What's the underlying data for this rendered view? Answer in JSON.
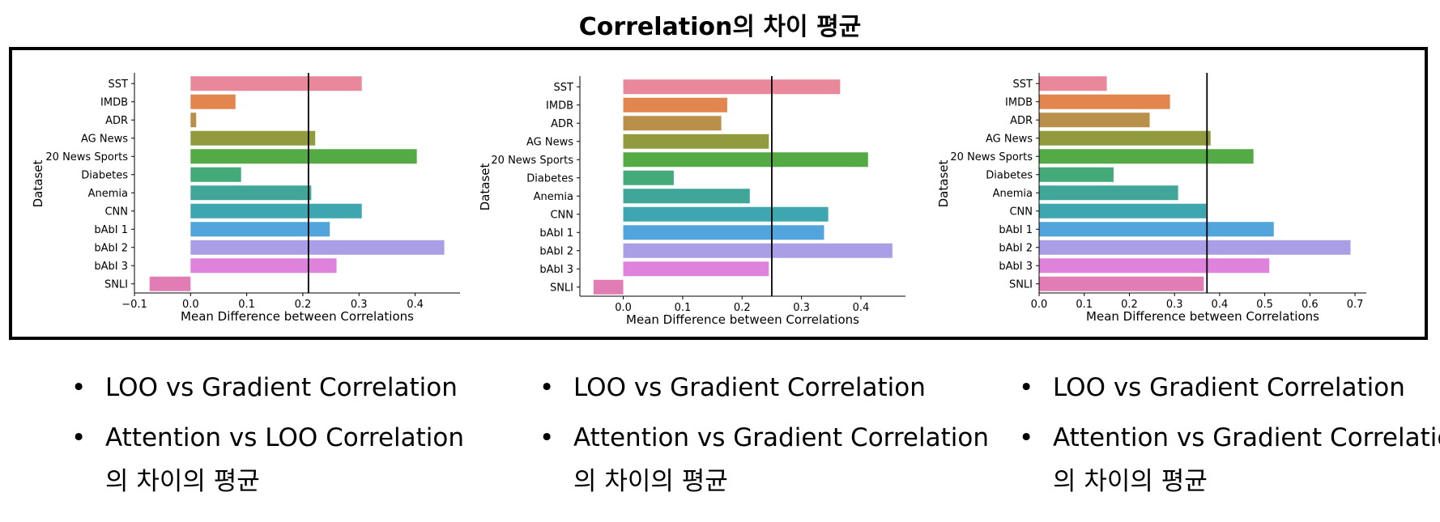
{
  "title": "Correlation의 차이 평균",
  "chart_data": [
    {
      "type": "bar",
      "orientation": "horizontal",
      "ylabel": "Dataset",
      "xlabel": "Mean Difference between Correlations",
      "categories": [
        "SST",
        "IMDB",
        "ADR",
        "AG News",
        "20 News Sports",
        "Diabetes",
        "Anemia",
        "CNN",
        "bAbI 1",
        "bAbI 2",
        "bAbI 3",
        "SNLI"
      ],
      "values": [
        0.305,
        0.08,
        0.01,
        0.222,
        0.403,
        0.09,
        0.215,
        0.305,
        0.248,
        0.452,
        0.26,
        -0.073
      ],
      "colors": [
        "#e8889a",
        "#e2854e",
        "#b9904a",
        "#929a3e",
        "#54aa44",
        "#44aa7a",
        "#40a69a",
        "#3ea6ae",
        "#52a4dc",
        "#aa9ee6",
        "#de82dc",
        "#e27cb4"
      ],
      "reference_line": 0.21,
      "xlim": [
        -0.1,
        0.48
      ],
      "xticks": [
        -0.1,
        0.0,
        0.1,
        0.2,
        0.3,
        0.4
      ],
      "xtick_labels": [
        "−0.1",
        "0.0",
        "0.1",
        "0.2",
        "0.3",
        "0.4"
      ]
    },
    {
      "type": "bar",
      "orientation": "horizontal",
      "ylabel": "Dataset",
      "xlabel": "Mean Difference between Correlations",
      "categories": [
        "SST",
        "IMDB",
        "ADR",
        "AG News",
        "20 News Sports",
        "Diabetes",
        "Anemia",
        "CNN",
        "bAbI 1",
        "bAbI 2",
        "bAbI 3",
        "SNLI"
      ],
      "values": [
        0.365,
        0.175,
        0.165,
        0.245,
        0.412,
        0.085,
        0.213,
        0.345,
        0.338,
        0.453,
        0.245,
        -0.05
      ],
      "colors": [
        "#e8889a",
        "#e2854e",
        "#b9904a",
        "#929a3e",
        "#54aa44",
        "#44aa7a",
        "#40a69a",
        "#3ea6ae",
        "#52a4dc",
        "#aa9ee6",
        "#de82dc",
        "#e27cb4"
      ],
      "reference_line": 0.25,
      "xlim": [
        -0.073,
        0.475
      ],
      "xticks": [
        0.0,
        0.1,
        0.2,
        0.3,
        0.4
      ],
      "xtick_labels": [
        "0.0",
        "0.1",
        "0.2",
        "0.3",
        "0.4"
      ]
    },
    {
      "type": "bar",
      "orientation": "horizontal",
      "ylabel": "Dataset",
      "xlabel": "Mean Difference between Correlations",
      "categories": [
        "SST",
        "IMDB",
        "ADR",
        "AG News",
        "20 News Sports",
        "Diabetes",
        "Anemia",
        "CNN",
        "bAbI 1",
        "bAbI 2",
        "bAbI 3",
        "SNLI"
      ],
      "values": [
        0.15,
        0.29,
        0.245,
        0.38,
        0.475,
        0.165,
        0.308,
        0.37,
        0.52,
        0.69,
        0.51,
        0.365
      ],
      "colors": [
        "#e8889a",
        "#e2854e",
        "#b9904a",
        "#929a3e",
        "#54aa44",
        "#44aa7a",
        "#40a69a",
        "#3ea6ae",
        "#52a4dc",
        "#aa9ee6",
        "#de82dc",
        "#e27cb4"
      ],
      "reference_line": 0.372,
      "xlim": [
        0.0,
        0.725
      ],
      "xticks": [
        0.0,
        0.1,
        0.2,
        0.3,
        0.4,
        0.5,
        0.6,
        0.7
      ],
      "xtick_labels": [
        "0.0",
        "0.1",
        "0.2",
        "0.3",
        "0.4",
        "0.5",
        "0.6",
        "0.7"
      ]
    }
  ],
  "captions": [
    {
      "line1": "LOO vs Gradient  Correlation",
      "line2": "Attention vs LOO Correlation",
      "line3": "의 차이의 평균"
    },
    {
      "line1": "LOO vs Gradient  Correlation",
      "line2": "Attention vs Gradient Correlation",
      "line3": "의 차이의 평균"
    },
    {
      "line1": "LOO vs Gradient  Correlation",
      "line2": "Attention vs Gradient Correlation",
      "line3": "의 차이의 평균"
    }
  ],
  "bullet_symbol": "•"
}
